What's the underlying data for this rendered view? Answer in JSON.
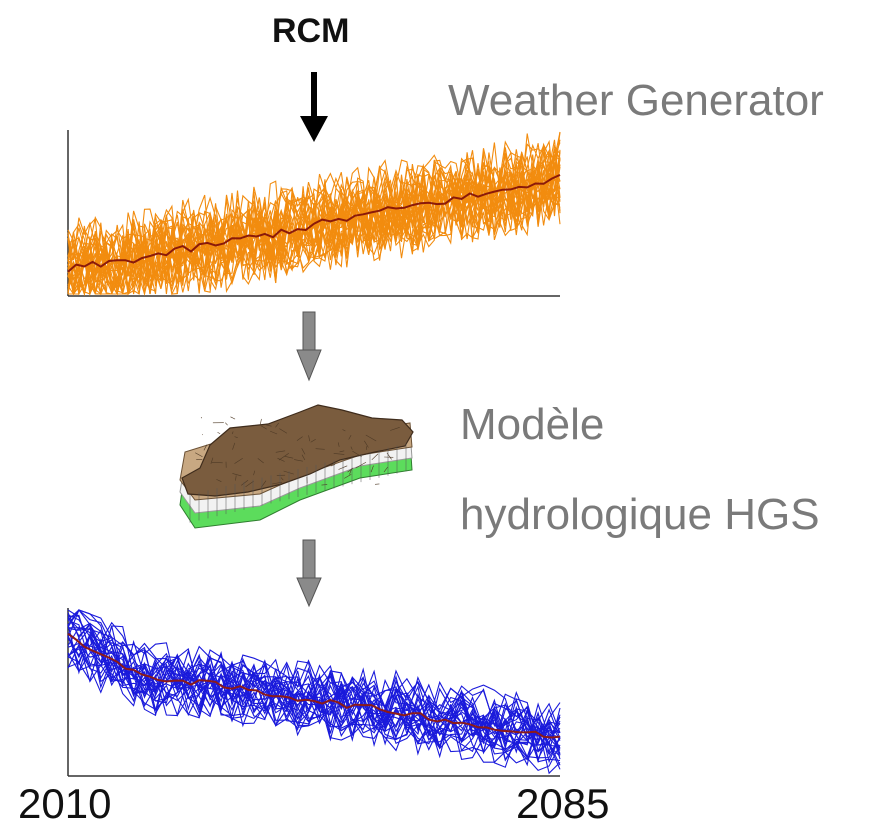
{
  "labels": {
    "rcm": "RCM",
    "weather_generator": "Weather Generator",
    "modele": "Modèle",
    "hydrologique": "hydrologique HGS",
    "year_start": "2010",
    "year_end": "2085"
  },
  "colors": {
    "top_ensemble": "#f28c0f",
    "top_mean": "#8b1a0a",
    "bottom_ensemble": "#1a1adb",
    "bottom_mean": "#8b1a1a",
    "terrain_top": "#7a5c3e",
    "soil_layer": "#c8a882",
    "green_layer": "#5cdc5c"
  },
  "chart_data": [
    {
      "type": "line",
      "trend": "increasing",
      "x_start": "2010",
      "x_end": "2085",
      "ensemble_members": 30,
      "series": [
        {
          "values": [
            0.15,
            0.22,
            0.3,
            0.38,
            0.47,
            0.55,
            0.62,
            0.72
          ]
        }
      ]
    },
    {
      "type": "line",
      "trend": "decreasing",
      "x_start": "2010",
      "x_end": "2085",
      "ensemble_members": 30,
      "series": [
        {
          "values": [
            0.85,
            0.6,
            0.55,
            0.48,
            0.42,
            0.36,
            0.28,
            0.22
          ]
        }
      ]
    }
  ]
}
